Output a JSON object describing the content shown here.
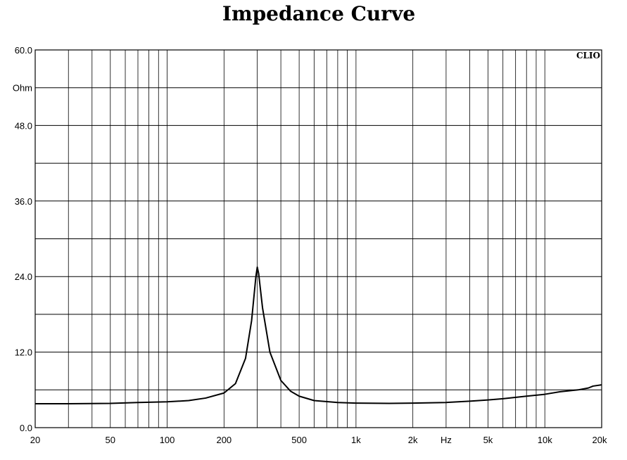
{
  "chart_data": {
    "type": "line",
    "title": "Impedance Curve",
    "brand": "CLIO",
    "x_scale": "log",
    "xlim": [
      20,
      20000
    ],
    "ylim": [
      0,
      60
    ],
    "grid": true,
    "x_ticks": [
      {
        "value": 20,
        "label": "20"
      },
      {
        "value": 50,
        "label": "50"
      },
      {
        "value": 100,
        "label": "100"
      },
      {
        "value": 200,
        "label": "200"
      },
      {
        "value": 500,
        "label": "500"
      },
      {
        "value": 1000,
        "label": "1k"
      },
      {
        "value": 2000,
        "label": "2k"
      },
      {
        "value": 5000,
        "label": "5k"
      },
      {
        "value": 10000,
        "label": "10k"
      },
      {
        "value": 20000,
        "label": "20k"
      }
    ],
    "x_unit": {
      "label": "Hz",
      "value": 3000
    },
    "y_ticks": [
      {
        "value": 0,
        "label": "0.0"
      },
      {
        "value": 12,
        "label": "12.0"
      },
      {
        "value": 24,
        "label": "24.0"
      },
      {
        "value": 36,
        "label": "36.0"
      },
      {
        "value": 48,
        "label": "48.0"
      },
      {
        "value": 60,
        "label": "60.0"
      }
    ],
    "y_unit": {
      "label": "Ohm",
      "value": 54
    },
    "series": [
      {
        "x": [
          20,
          30,
          50,
          70,
          100,
          130,
          160,
          200,
          230,
          260,
          280,
          295,
          300,
          305,
          320,
          350,
          400,
          450,
          500,
          600,
          800,
          1000,
          1500,
          2000,
          3000,
          4000,
          5000,
          6000,
          8000,
          10000,
          12000,
          15000,
          17000,
          18000,
          20000
        ],
        "y": [
          3.8,
          3.8,
          3.85,
          4.0,
          4.1,
          4.3,
          4.7,
          5.5,
          7.0,
          11.0,
          17.0,
          24.0,
          25.5,
          24.5,
          19.0,
          12.0,
          7.5,
          5.8,
          5.0,
          4.3,
          4.0,
          3.9,
          3.85,
          3.9,
          4.0,
          4.2,
          4.4,
          4.6,
          5.0,
          5.3,
          5.7,
          6.0,
          6.3,
          6.6,
          6.8
        ]
      }
    ]
  }
}
